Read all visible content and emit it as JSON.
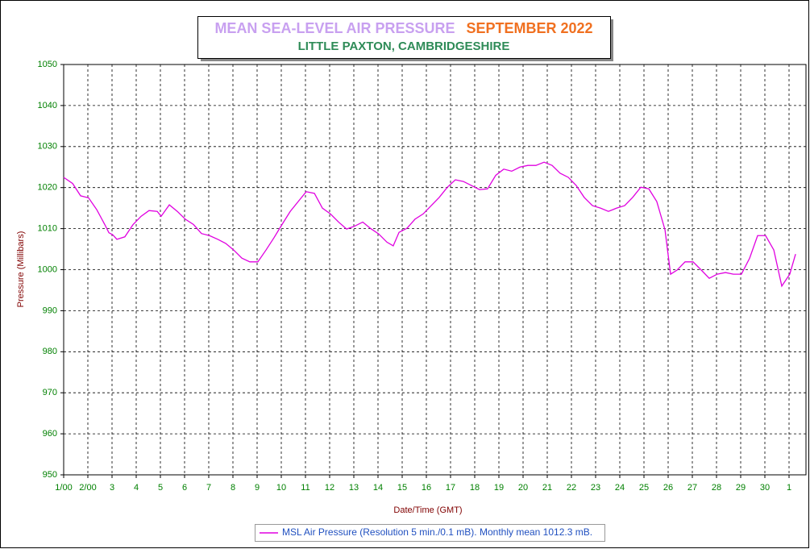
{
  "chart_data": {
    "type": "line",
    "title": "MEAN SEA-LEVEL AIR PRESSURE",
    "title_period": "SEPTEMBER 2022",
    "subtitle": "LITTLE PAXTON, CAMBRIDGESHIRE",
    "xlabel": "Date/Time (GMT)",
    "ylabel": "Pressure (Millibars)",
    "xlim": [
      0,
      30.7
    ],
    "ylim": [
      950,
      1050
    ],
    "yticks": [
      950,
      960,
      970,
      980,
      990,
      1000,
      1010,
      1020,
      1030,
      1040,
      1050
    ],
    "xticks": [
      {
        "value": 0,
        "label": "1/00"
      },
      {
        "value": 1,
        "label": "2/00"
      },
      {
        "value": 2,
        "label": "3"
      },
      {
        "value": 3,
        "label": "4"
      },
      {
        "value": 4,
        "label": "5"
      },
      {
        "value": 5,
        "label": "6"
      },
      {
        "value": 6,
        "label": "7"
      },
      {
        "value": 7,
        "label": "8"
      },
      {
        "value": 8,
        "label": "9"
      },
      {
        "value": 9,
        "label": "10"
      },
      {
        "value": 10,
        "label": "11"
      },
      {
        "value": 11,
        "label": "12"
      },
      {
        "value": 12,
        "label": "13"
      },
      {
        "value": 13,
        "label": "14"
      },
      {
        "value": 14,
        "label": "15"
      },
      {
        "value": 15,
        "label": "16"
      },
      {
        "value": 16,
        "label": "17"
      },
      {
        "value": 17,
        "label": "18"
      },
      {
        "value": 18,
        "label": "19"
      },
      {
        "value": 19,
        "label": "20"
      },
      {
        "value": 20,
        "label": "21"
      },
      {
        "value": 21,
        "label": "22"
      },
      {
        "value": 22,
        "label": "23"
      },
      {
        "value": 23,
        "label": "24"
      },
      {
        "value": 24,
        "label": "25"
      },
      {
        "value": 25,
        "label": "26"
      },
      {
        "value": 26,
        "label": "27"
      },
      {
        "value": 27,
        "label": "28"
      },
      {
        "value": 28,
        "label": "29"
      },
      {
        "value": 29,
        "label": "30"
      },
      {
        "value": 30,
        "label": "1"
      }
    ],
    "grid": true,
    "x": [
      0,
      0.37,
      0.7,
      1.03,
      1.37,
      1.7,
      1.87,
      2.03,
      2.2,
      2.53,
      2.87,
      3.2,
      3.53,
      3.87,
      4.03,
      4.37,
      4.7,
      5.03,
      5.37,
      5.7,
      6.03,
      6.37,
      6.7,
      7.03,
      7.37,
      7.7,
      8.03,
      8.37,
      8.7,
      9.03,
      9.37,
      9.7,
      10.03,
      10.37,
      10.7,
      11.03,
      11.37,
      11.7,
      12.03,
      12.37,
      12.7,
      13.03,
      13.37,
      13.63,
      13.87,
      14.2,
      14.53,
      14.87,
      15.2,
      15.53,
      15.87,
      16.2,
      16.53,
      16.87,
      17.2,
      17.53,
      17.87,
      18.2,
      18.53,
      18.87,
      19.2,
      19.53,
      19.87,
      20.2,
      20.53,
      20.87,
      21.2,
      21.53,
      21.87,
      22.2,
      22.53,
      22.87,
      23.2,
      23.53,
      23.87,
      24.2,
      24.53,
      24.87,
      25.1,
      25.37,
      25.7,
      26.03,
      26.37,
      26.7,
      27.03,
      27.37,
      27.7,
      28.03,
      28.37,
      28.7,
      29.03,
      29.37,
      29.7,
      30.03,
      30.27
    ],
    "series": [
      {
        "name": "MSL Air Pressure (Resolution 5 min./0.1 mB). Monthly mean 1012.3 mB.",
        "color": "#e000e0",
        "values": [
          1022.5,
          1021,
          1018,
          1017.5,
          1014.6,
          1011,
          1009,
          1008.5,
          1007.4,
          1008,
          1011,
          1013,
          1014.4,
          1014.2,
          1013,
          1015.8,
          1014.2,
          1012.3,
          1011,
          1008.8,
          1008.3,
          1007.4,
          1006.4,
          1004.8,
          1002.8,
          1001.9,
          1001.9,
          1004.8,
          1007.8,
          1011,
          1014.2,
          1016.6,
          1019,
          1018.6,
          1015,
          1013.6,
          1011.6,
          1009.9,
          1010.6,
          1011.6,
          1010,
          1008.7,
          1006.7,
          1005.8,
          1009.1,
          1010.1,
          1012.3,
          1013.6,
          1015.6,
          1017.6,
          1020.1,
          1021.9,
          1021.5,
          1020.5,
          1019.5,
          1019.7,
          1023,
          1024.5,
          1024,
          1025,
          1025.4,
          1025.4,
          1026.2,
          1025.4,
          1023.5,
          1022.5,
          1020.5,
          1017.6,
          1015.6,
          1015,
          1014.2,
          1015,
          1015.6,
          1017.6,
          1020.1,
          1019.7,
          1016.6,
          1009.7,
          998.9,
          999.9,
          1001.9,
          1001.9,
          999.9,
          997.9,
          998.9,
          999.3,
          998.9,
          998.9,
          1002.8,
          1008.3,
          1008.3,
          1004.8,
          996,
          998.9,
          1003.8
        ]
      }
    ]
  }
}
